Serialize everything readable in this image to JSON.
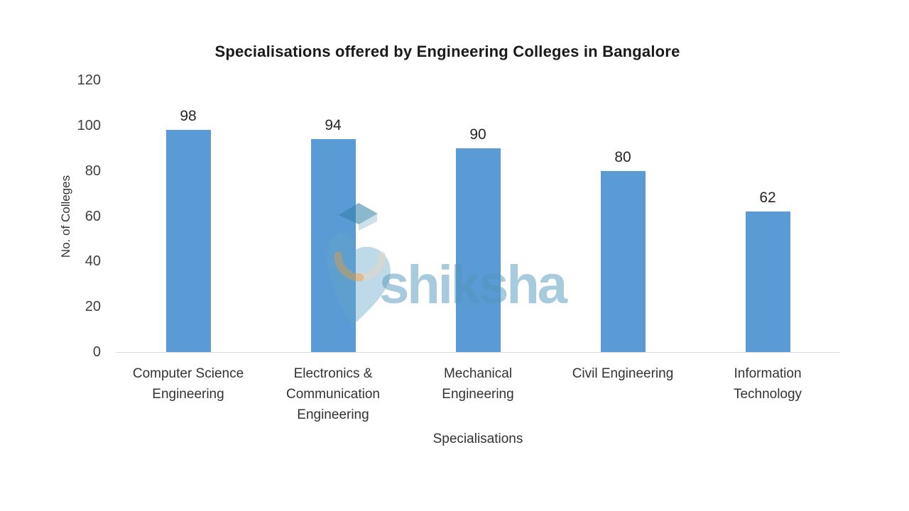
{
  "chart_data": {
    "type": "bar",
    "title": "Specialisations offered by Engineering Colleges in Bangalore",
    "xlabel": "Specialisations",
    "ylabel": "No. of Colleges",
    "categories": [
      "Computer Science Engineering",
      "Electronics & Communication Engineering",
      "Mechanical Engineering",
      "Civil Engineering",
      "Information Technology"
    ],
    "values": [
      98,
      94,
      90,
      80,
      62
    ],
    "yticks": [
      0,
      20,
      40,
      60,
      80,
      100,
      120
    ],
    "ylim": [
      0,
      120
    ],
    "grid": false,
    "legend": false,
    "bar_color": "#5B9BD5",
    "axis_line_color": "#D9D9D9",
    "text_color": "#262626"
  },
  "watermark": {
    "text": "shiksha",
    "icon": "shiksha-graduation-cap-logo",
    "text_color": "rgba(80,150,185,0.5)",
    "body_color": "rgba(100,165,200,0.42)",
    "cap_color": "rgba(45,125,165,0.55)",
    "cap_band_color": "rgba(130,180,205,0.4)",
    "arc_color": "rgba(235,155,60,0.45)",
    "arc_pale_color": "rgba(225,215,195,0.55)"
  }
}
